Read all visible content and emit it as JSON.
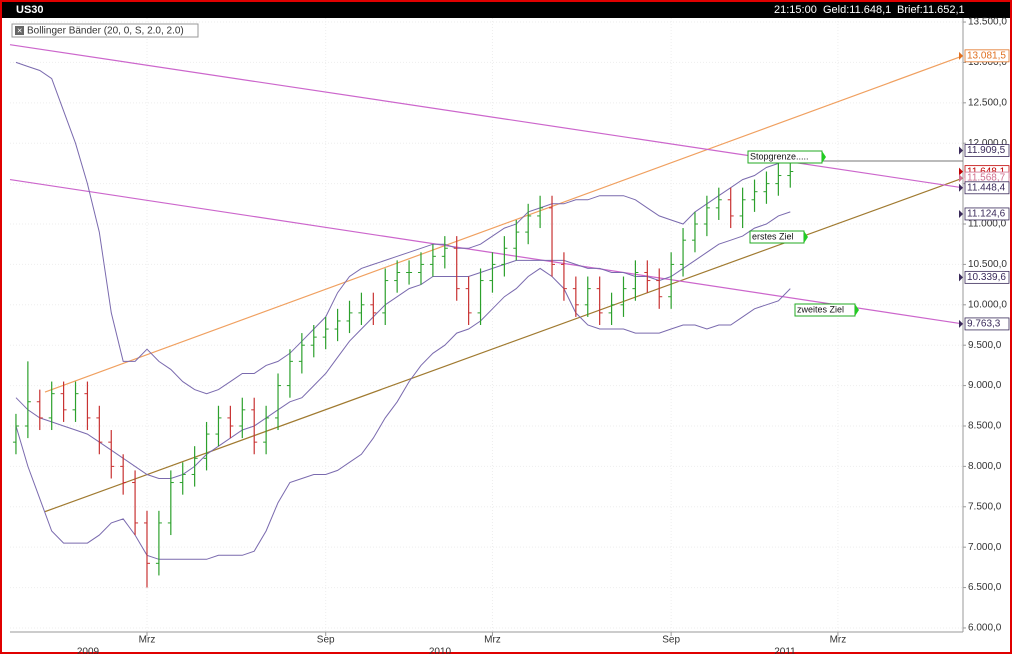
{
  "chart_data": {
    "type": "ohlc",
    "title": "US30",
    "quote": [
      "21:15:00",
      "Geld:11.648,1",
      "Brief:11.652,1"
    ],
    "indicator": "Bollinger Bänder (20, 0, S, 2.0, 2.0)",
    "categories": [
      null,
      null,
      null,
      null,
      null,
      null,
      null,
      null,
      null,
      null,
      null,
      "Mrz",
      null,
      null,
      null,
      null,
      null,
      null,
      null,
      null,
      null,
      null,
      null,
      null,
      null,
      null,
      "Sep",
      null,
      null,
      null,
      null,
      null,
      null,
      null,
      null,
      null,
      null,
      null,
      null,
      null,
      "Mrz",
      null,
      null,
      null,
      null,
      null,
      null,
      null,
      null,
      null,
      null,
      null,
      null,
      null,
      null,
      "Sep",
      null,
      null,
      null,
      null,
      null,
      null,
      null,
      null,
      null,
      null,
      null,
      null,
      null,
      "Mrz"
    ],
    "years": [
      "2009",
      "2010",
      "2011"
    ],
    "open": [
      8300,
      8500,
      8800,
      8600,
      8900,
      8700,
      8900,
      8600,
      8300,
      8000,
      7800,
      7300,
      6800,
      7300,
      7800,
      7900,
      8100,
      8400,
      8600,
      8500,
      8700,
      8300,
      8600,
      9000,
      9300,
      9500,
      9600,
      9700,
      9800,
      9900,
      10000,
      9900,
      10300,
      10400,
      10400,
      10500,
      10600,
      10700,
      10200,
      9900,
      10300,
      10500,
      10700,
      10900,
      11100,
      11200,
      10500,
      10200,
      10000,
      10200,
      9900,
      10000,
      10200,
      10400,
      10300,
      10100,
      10500,
      10800,
      11000,
      11200,
      11300,
      11100,
      11300,
      11400,
      11500,
      11600,
      null,
      null,
      null,
      null
    ],
    "high": [
      8650,
      9300,
      8950,
      9050,
      9050,
      9050,
      9050,
      8750,
      8450,
      8150,
      7950,
      7450,
      7450,
      7950,
      8050,
      8250,
      8550,
      8750,
      8750,
      8850,
      8850,
      8750,
      9150,
      9450,
      9650,
      9750,
      9850,
      9950,
      10050,
      10150,
      10150,
      10450,
      10550,
      10550,
      10650,
      10750,
      10850,
      10850,
      10350,
      10450,
      10650,
      10850,
      11050,
      11250,
      11350,
      11350,
      10650,
      10350,
      10350,
      10350,
      10150,
      10350,
      10550,
      10550,
      10450,
      10650,
      10950,
      11150,
      11350,
      11450,
      11450,
      11450,
      11550,
      11650,
      11750,
      11800,
      null,
      null,
      null,
      null
    ],
    "low": [
      8150,
      8350,
      8450,
      8450,
      8550,
      8550,
      8450,
      8150,
      7850,
      7650,
      7150,
      6500,
      6650,
      7150,
      7650,
      7750,
      7950,
      8250,
      8350,
      8350,
      8150,
      8150,
      8450,
      8850,
      9150,
      9350,
      9450,
      9550,
      9650,
      9750,
      9750,
      9750,
      10150,
      10250,
      10250,
      10350,
      10450,
      10050,
      9750,
      9750,
      10150,
      10350,
      10550,
      10750,
      10950,
      10350,
      10050,
      9850,
      9850,
      9750,
      9750,
      9850,
      10050,
      10150,
      9950,
      9950,
      10350,
      10650,
      10850,
      11050,
      10950,
      10950,
      11150,
      11250,
      11350,
      11450,
      null,
      null,
      null,
      null
    ],
    "close": [
      8500,
      8800,
      8600,
      8900,
      8700,
      8900,
      8600,
      8300,
      8000,
      7800,
      7300,
      6800,
      7300,
      7800,
      7900,
      8100,
      8400,
      8600,
      8500,
      8700,
      8300,
      8600,
      9000,
      9300,
      9500,
      9600,
      9700,
      9800,
      9900,
      10000,
      9900,
      10300,
      10400,
      10400,
      10500,
      10600,
      10700,
      10200,
      9900,
      10300,
      10500,
      10700,
      10900,
      11100,
      11200,
      10500,
      10200,
      10000,
      10200,
      9900,
      10000,
      10200,
      10400,
      10300,
      10100,
      10500,
      10800,
      11000,
      11200,
      11300,
      11100,
      11300,
      11400,
      11500,
      11600,
      11650,
      null,
      null,
      null,
      null
    ],
    "up_color": "#2ca02c",
    "down_color": "#c83232",
    "bollinger": {
      "color": "#7a6aae",
      "upper": [
        13000,
        12950,
        12900,
        12800,
        12400,
        12000,
        11500,
        10900,
        9900,
        9300,
        9300,
        9450,
        9300,
        9200,
        9050,
        8950,
        8900,
        8950,
        9050,
        9150,
        9150,
        9250,
        9300,
        9400,
        9550,
        9700,
        9850,
        10150,
        10350,
        10450,
        10500,
        10550,
        10600,
        10650,
        10700,
        10750,
        10750,
        10700,
        10700,
        10750,
        10850,
        10950,
        11000,
        11150,
        11200,
        11250,
        11250,
        11300,
        11300,
        11350,
        11350,
        11350,
        11300,
        11200,
        11100,
        11050,
        11000,
        11150,
        11250,
        11350,
        11450,
        11550,
        11600,
        11700,
        11750,
        11800,
        null,
        null,
        null,
        null
      ],
      "middle": [
        8850,
        8700,
        8600,
        8550,
        8500,
        8450,
        8400,
        8300,
        8200,
        8100,
        8000,
        7900,
        7850,
        7850,
        7900,
        8000,
        8150,
        8250,
        8350,
        8450,
        8500,
        8600,
        8700,
        8800,
        8850,
        9000,
        9150,
        9350,
        9550,
        9700,
        9850,
        10000,
        10100,
        10200,
        10250,
        10350,
        10350,
        10350,
        10350,
        10400,
        10450,
        10500,
        10550,
        10550,
        10550,
        10550,
        10550,
        10500,
        10450,
        10450,
        10400,
        10400,
        10350,
        10350,
        10300,
        10350,
        10450,
        10550,
        10650,
        10750,
        10800,
        10850,
        10950,
        11000,
        11100,
        11150,
        null,
        null,
        null,
        null
      ],
      "lower": [
        8500,
        8000,
        7600,
        7200,
        7050,
        7050,
        7050,
        7150,
        7300,
        7350,
        7150,
        6900,
        6850,
        6850,
        6850,
        6850,
        6850,
        6900,
        6900,
        6900,
        6950,
        7200,
        7550,
        7800,
        7850,
        7900,
        7900,
        7950,
        8050,
        8150,
        8350,
        8600,
        8800,
        9050,
        9250,
        9400,
        9500,
        9650,
        9700,
        9800,
        9950,
        10100,
        10200,
        10350,
        10450,
        10350,
        10200,
        9900,
        9750,
        9700,
        9700,
        9700,
        9650,
        9650,
        9650,
        9700,
        9750,
        9750,
        9700,
        9750,
        9750,
        9850,
        9950,
        10000,
        10050,
        10200,
        null,
        null,
        null,
        null
      ]
    },
    "trendlines": [
      {
        "color": "#f0a060",
        "values": [
          8920,
          13081.5
        ]
      },
      {
        "color": "#a07a30",
        "values": [
          7440,
          11568.7
        ]
      },
      {
        "color": "#cc66cc",
        "values": [
          13220,
          11448.4
        ]
      },
      {
        "color": "#cc66cc",
        "values": [
          11550,
          9763.3
        ]
      }
    ],
    "price_markers": [
      {
        "value": 13081.5,
        "label": "13.081,5",
        "color": "#e07020"
      },
      {
        "value": 11909.5,
        "label": "11.909,5",
        "color": "#3a2a5a"
      },
      {
        "value": 11648.1,
        "label": "11.648,1",
        "color": "#c00000"
      },
      {
        "value": 11568.7,
        "label": "11.568,7",
        "color": "#d07090"
      },
      {
        "value": 11448.4,
        "label": "11.448,4",
        "color": "#3a2a5a"
      },
      {
        "value": 11124.6,
        "label": "11.124,6",
        "color": "#3a2a5a"
      },
      {
        "value": 10339.6,
        "label": "10.339,6",
        "color": "#3a2a5a"
      },
      {
        "value": 9763.3,
        "label": "9.763,3",
        "color": "#3a2a5a"
      }
    ],
    "annotations": [
      "Stopgrenze.....",
      "erstes Ziel",
      "zweites Ziel"
    ],
    "ylim": [
      5950,
      13550
    ],
    "yticks": [
      {
        "value": 6000,
        "label": "6.000,0"
      },
      {
        "value": 6500,
        "label": "6.500,0"
      },
      {
        "value": 7000,
        "label": "7.000,0"
      },
      {
        "value": 7500,
        "label": "7.500,0"
      },
      {
        "value": 8000,
        "label": "8.000,0"
      },
      {
        "value": 8500,
        "label": "8.500,0"
      },
      {
        "value": 9000,
        "label": "9.000,0"
      },
      {
        "value": 9500,
        "label": "9.500,0"
      },
      {
        "value": 10000,
        "label": "10.000,0"
      },
      {
        "value": 10500,
        "label": "10.500,0"
      },
      {
        "value": 11000,
        "label": "11.000,0"
      },
      {
        "value": 11500,
        "label": "11.500,0"
      },
      {
        "value": 12000,
        "label": "12.000,0"
      },
      {
        "value": 12500,
        "label": "12.500,0"
      },
      {
        "value": 13000,
        "label": "13.000,0"
      },
      {
        "value": 13500,
        "label": "13.500,0"
      }
    ],
    "grid": true
  }
}
